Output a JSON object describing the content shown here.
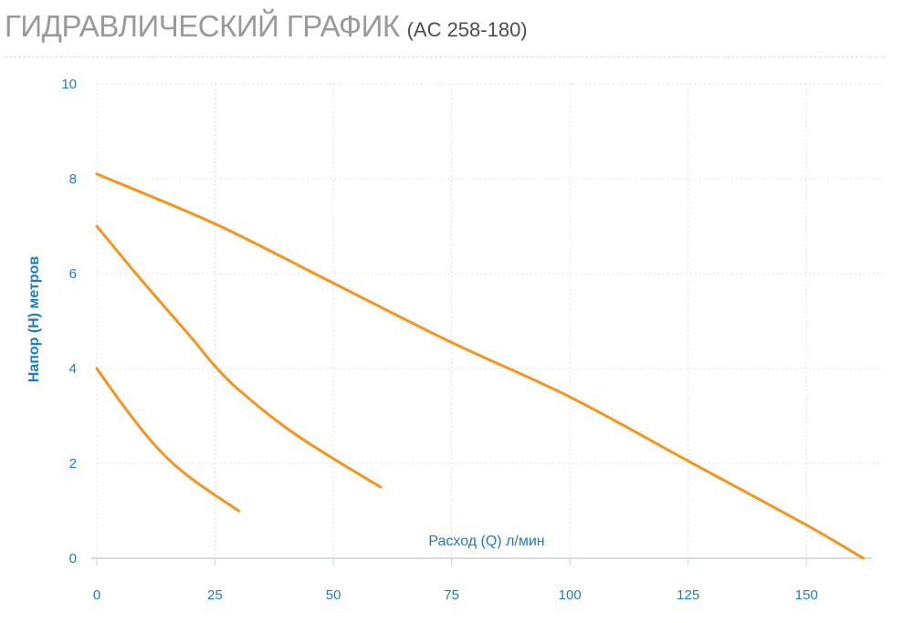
{
  "chart_data": {
    "type": "line",
    "title": "ГИДРАВЛИЧЕСКИЙ ГРАФИК",
    "subtitle": "(AC 258-180)",
    "xlabel": "Расход (Q) л/мин",
    "ylabel": "Напор (H) метров",
    "xlim": [
      0,
      165
    ],
    "ylim": [
      0,
      10
    ],
    "xticks": [
      0,
      25,
      50,
      75,
      100,
      125,
      150
    ],
    "yticks": [
      0,
      2,
      4,
      6,
      8,
      10
    ],
    "grid": true,
    "series": [
      {
        "x": [
          0,
          25,
          50,
          75,
          100,
          125,
          150,
          162
        ],
        "y": [
          8.1,
          7.05,
          5.8,
          4.55,
          3.4,
          2.05,
          0.7,
          0
        ]
      },
      {
        "x": [
          0,
          10,
          20,
          25,
          30,
          40,
          50,
          60
        ],
        "y": [
          7.0,
          5.8,
          4.65,
          4.05,
          3.55,
          2.75,
          2.1,
          1.5
        ]
      },
      {
        "x": [
          0,
          5,
          10,
          15,
          20,
          25,
          30
        ],
        "y": [
          4.0,
          3.3,
          2.65,
          2.1,
          1.68,
          1.33,
          1.0
        ]
      }
    ]
  },
  "colors": {
    "line": "#F7941D",
    "axis_text": "#1B7CC0",
    "grid": "#E0E0E0",
    "axis": "#C8D2DC"
  }
}
